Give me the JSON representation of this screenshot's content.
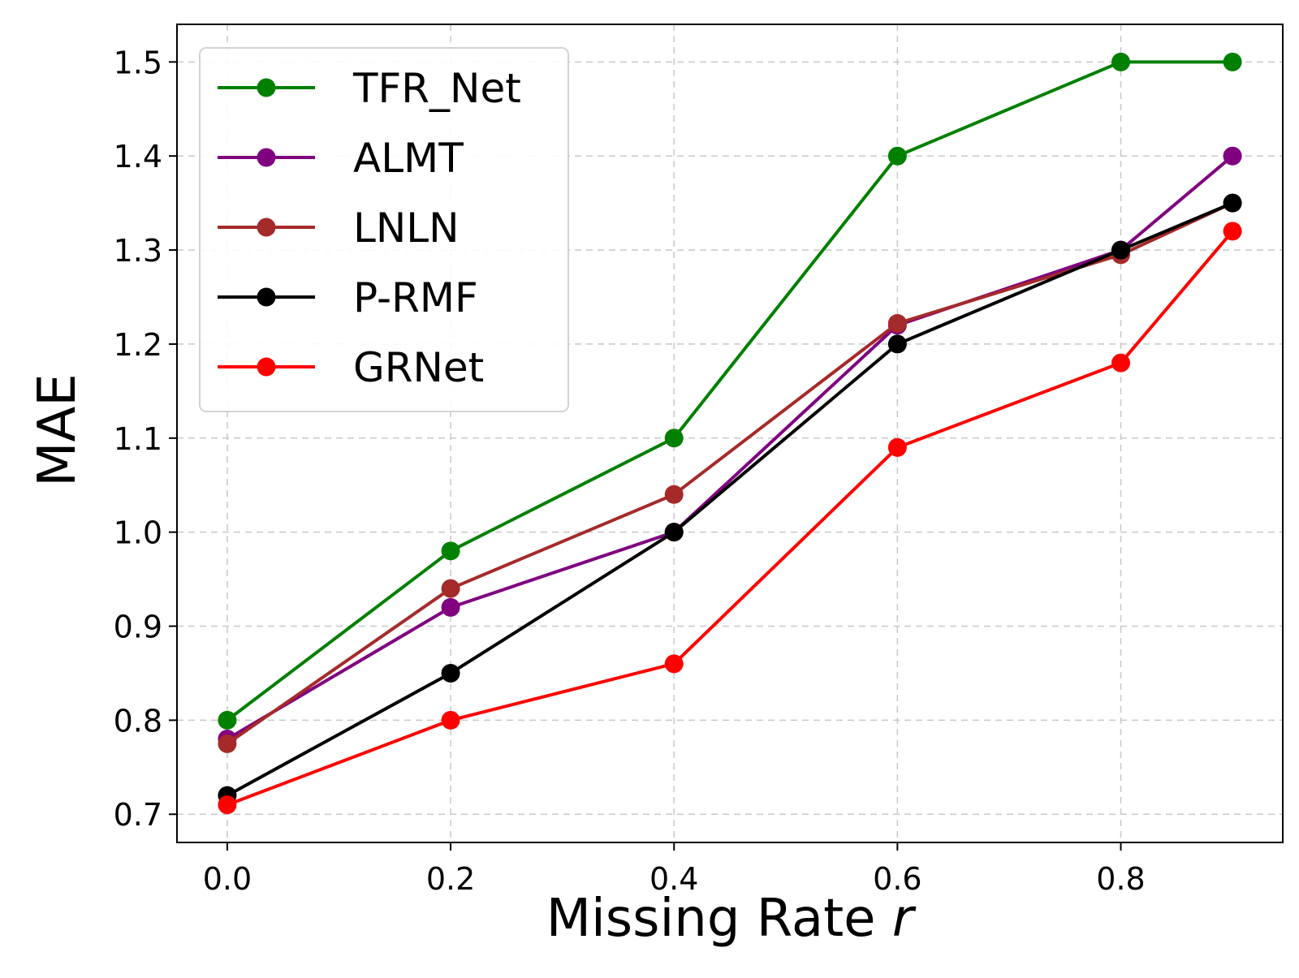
{
  "chart_data": {
    "type": "line",
    "xlabel": "Missing Rate",
    "xlabel_var": "r",
    "ylabel": "MAE",
    "x": [
      0.0,
      0.2,
      0.4,
      0.6,
      0.8,
      0.9
    ],
    "xlim": [
      -0.045,
      0.945
    ],
    "ylim": [
      0.67,
      1.54
    ],
    "xticks": [
      0.0,
      0.2,
      0.4,
      0.6,
      0.8
    ],
    "xtick_labels": [
      "0.0",
      "0.2",
      "0.4",
      "0.6",
      "0.8"
    ],
    "yticks": [
      0.7,
      0.8,
      0.9,
      1.0,
      1.1,
      1.2,
      1.3,
      1.4,
      1.5
    ],
    "ytick_labels": [
      "0.7",
      "0.8",
      "0.9",
      "1.0",
      "1.1",
      "1.2",
      "1.3",
      "1.4",
      "1.5"
    ],
    "grid": true,
    "legend_position": "top-left",
    "series": [
      {
        "name": "TFR_Net",
        "color": "#008000",
        "values": [
          0.8,
          0.98,
          1.1,
          1.4,
          1.5,
          1.5
        ]
      },
      {
        "name": "ALMT",
        "color": "#800080",
        "values": [
          0.78,
          0.92,
          1.0,
          1.22,
          1.3,
          1.4
        ]
      },
      {
        "name": "LNLN",
        "color": "#a52a2a",
        "values": [
          0.775,
          0.94,
          1.04,
          1.222,
          1.295,
          1.35
        ]
      },
      {
        "name": "P-RMF",
        "color": "#000000",
        "values": [
          0.72,
          0.85,
          1.0,
          1.2,
          1.3,
          1.35
        ]
      },
      {
        "name": "GRNet",
        "color": "#ff0000",
        "values": [
          0.71,
          0.8,
          0.86,
          1.09,
          1.18,
          1.32
        ]
      }
    ]
  }
}
